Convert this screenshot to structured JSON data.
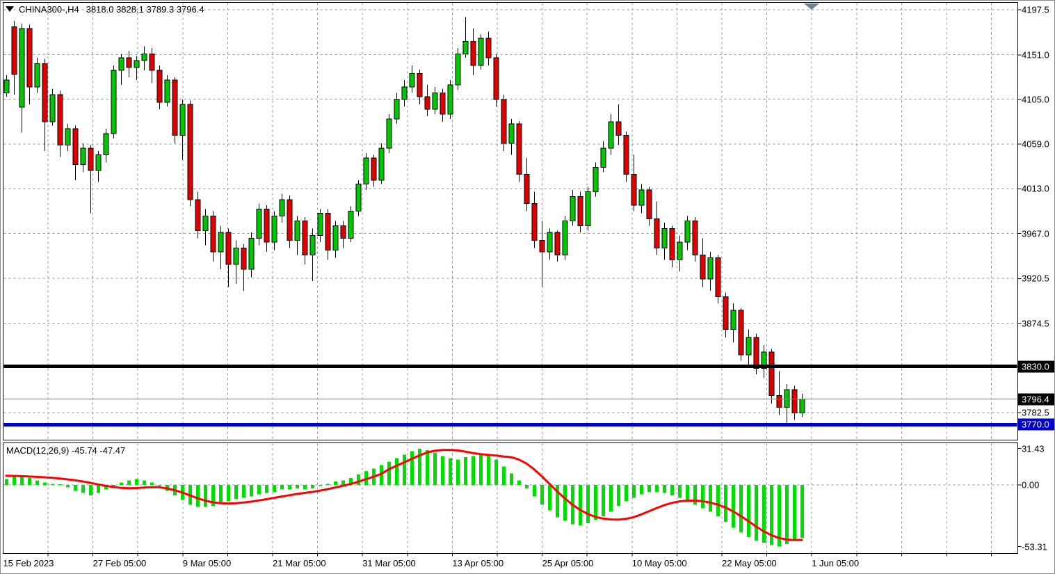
{
  "window": {
    "title_symbol": "CHINA300-,H4",
    "quote_ohlc": "3818.0 3828.1 3789.3 3796.4"
  },
  "chart_data": [
    {
      "type": "candlestick",
      "title": "CHINA300-,H4",
      "symbol": "CHINA300-",
      "timeframe": "H4",
      "current_bar_display": {
        "open": "3818.0",
        "high": "3828.1",
        "low": "3789.3",
        "close": "3796.4"
      },
      "ylim": [
        3765,
        4205
      ],
      "grid": true,
      "price_axis_ticks": [
        4197.5,
        4151.0,
        4105.0,
        4059.0,
        4013.0,
        3967.0,
        3920.5,
        3874.5,
        3782.5
      ],
      "time_axis_labels": [
        "15 Feb 2023",
        "27 Feb 05:00",
        "9 Mar 05:00",
        "21 Mar 05:00",
        "31 Mar 05:00",
        "13 Apr 05:00",
        "25 Apr 05:00",
        "10 May 05:00",
        "22 May 05:00",
        "1 Jun 05:00"
      ],
      "horizontal_lines": [
        {
          "price": 3830.0,
          "label": "3830.0",
          "color": "#000000",
          "badge_bg": "#000000",
          "thickness": 5,
          "role": "support-resistance"
        },
        {
          "price": 3796.4,
          "label": "3796.4",
          "color": "#808080",
          "badge_bg": "#000000",
          "thickness": 1,
          "role": "current-price"
        },
        {
          "price": 3770.0,
          "label": "3770.0",
          "color": "#0000C8",
          "badge_bg": "#0000C8",
          "thickness": 5,
          "role": "support-resistance"
        }
      ],
      "colors": {
        "up": "#00C800",
        "down": "#E00000",
        "wick": "#000000",
        "grid": "#7E93A8"
      },
      "candles_ohlc": [
        [
          4112,
          4130,
          4108,
          4125
        ],
        [
          4180,
          4186,
          4110,
          4131
        ],
        [
          4097,
          4183,
          4071,
          4178
        ],
        [
          4178,
          4182,
          4100,
          4118
        ],
        [
          4118,
          4148,
          4112,
          4142
        ],
        [
          4142,
          4147,
          4052,
          4082
        ],
        [
          4082,
          4116,
          4078,
          4110
        ],
        [
          4110,
          4114,
          4046,
          4058
        ],
        [
          4058,
          4080,
          4052,
          4075
        ],
        [
          4075,
          4078,
          4022,
          4038
        ],
        [
          4038,
          4060,
          4030,
          4055
        ],
        [
          4055,
          4058,
          3988,
          4032
        ],
        [
          4032,
          4052,
          4020,
          4048
        ],
        [
          4048,
          4075,
          4040,
          4070
        ],
        [
          4070,
          4140,
          4065,
          4135
        ],
        [
          4135,
          4152,
          4120,
          4148
        ],
        [
          4148,
          4155,
          4128,
          4138
        ],
        [
          4138,
          4150,
          4125,
          4145
        ],
        [
          4145,
          4160,
          4135,
          4152
        ],
        [
          4152,
          4158,
          4122,
          4135
        ],
        [
          4135,
          4140,
          4095,
          4102
        ],
        [
          4102,
          4130,
          4098,
          4125
        ],
        [
          4125,
          4128,
          4060,
          4068
        ],
        [
          4068,
          4105,
          4043,
          4100
        ],
        [
          4100,
          4104,
          3995,
          4002
        ],
        [
          4002,
          4010,
          3962,
          3970
        ],
        [
          3970,
          3992,
          3955,
          3985
        ],
        [
          3985,
          3990,
          3938,
          3948
        ],
        [
          3948,
          3975,
          3930,
          3968
        ],
        [
          3968,
          3972,
          3912,
          3935
        ],
        [
          3935,
          3960,
          3915,
          3952
        ],
        [
          3952,
          3956,
          3908,
          3930
        ],
        [
          3930,
          3968,
          3922,
          3962
        ],
        [
          3962,
          3998,
          3955,
          3992
        ],
        [
          3992,
          3996,
          3948,
          3958
        ],
        [
          3958,
          3990,
          3950,
          3985
        ],
        [
          3985,
          4008,
          3978,
          4002
        ],
        [
          4002,
          4006,
          3952,
          3960
        ],
        [
          3960,
          3985,
          3945,
          3980
        ],
        [
          3980,
          3984,
          3935,
          3945
        ],
        [
          3945,
          3972,
          3918,
          3965
        ],
        [
          3965,
          3992,
          3958,
          3988
        ],
        [
          3988,
          3992,
          3940,
          3950
        ],
        [
          3950,
          3980,
          3942,
          3975
        ],
        [
          3975,
          3980,
          3952,
          3962
        ],
        [
          3962,
          3995,
          3958,
          3990
        ],
        [
          3990,
          4022,
          3985,
          4018
        ],
        [
          4018,
          4050,
          4012,
          4045
        ],
        [
          4045,
          4048,
          4015,
          4022
        ],
        [
          4022,
          4060,
          4018,
          4055
        ],
        [
          4055,
          4090,
          4050,
          4085
        ],
        [
          4085,
          4112,
          4080,
          4105
        ],
        [
          4105,
          4125,
          4098,
          4118
        ],
        [
          4118,
          4140,
          4112,
          4132
        ],
        [
          4132,
          4136,
          4100,
          4108
        ],
        [
          4108,
          4120,
          4088,
          4095
        ],
        [
          4095,
          4118,
          4090,
          4112
        ],
        [
          4112,
          4116,
          4082,
          4090
        ],
        [
          4090,
          4125,
          4085,
          4120
        ],
        [
          4120,
          4158,
          4115,
          4152
        ],
        [
          4152,
          4190,
          4148,
          4165
        ],
        [
          4165,
          4178,
          4130,
          4140
        ],
        [
          4140,
          4172,
          4136,
          4168
        ],
        [
          4168,
          4175,
          4140,
          4148
        ],
        [
          4148,
          4152,
          4098,
          4105
        ],
        [
          4105,
          4110,
          4052,
          4060
        ],
        [
          4060,
          4085,
          4048,
          4080
        ],
        [
          4080,
          4083,
          4020,
          4028
        ],
        [
          4028,
          4045,
          3990,
          3998
        ],
        [
          3998,
          4010,
          3952,
          3960
        ],
        [
          3960,
          3980,
          3912,
          3948
        ],
        [
          3948,
          3972,
          3940,
          3968
        ],
        [
          3968,
          3970,
          3938,
          3945
        ],
        [
          3945,
          3985,
          3940,
          3980
        ],
        [
          3980,
          4012,
          3975,
          4005
        ],
        [
          4005,
          4010,
          3968,
          3975
        ],
        [
          3975,
          4015,
          3970,
          4010
        ],
        [
          4010,
          4040,
          4005,
          4035
        ],
        [
          4035,
          4062,
          4030,
          4055
        ],
        [
          4055,
          4090,
          4048,
          4082
        ],
        [
          4082,
          4100,
          4058,
          4068
        ],
        [
          4068,
          4072,
          4020,
          4028
        ],
        [
          4028,
          4048,
          3990,
          3996
        ],
        [
          3996,
          4018,
          3988,
          4012
        ],
        [
          4012,
          4015,
          3975,
          3982
        ],
        [
          3982,
          4000,
          3945,
          3952
        ],
        [
          3952,
          3978,
          3940,
          3972
        ],
        [
          3972,
          3975,
          3932,
          3940
        ],
        [
          3940,
          3965,
          3928,
          3958
        ],
        [
          3958,
          3985,
          3950,
          3980
        ],
        [
          3980,
          3984,
          3938,
          3945
        ],
        [
          3945,
          3962,
          3912,
          3920
        ],
        [
          3920,
          3948,
          3908,
          3942
        ],
        [
          3942,
          3945,
          3895,
          3902
        ],
        [
          3902,
          3906,
          3860,
          3868
        ],
        [
          3868,
          3895,
          3855,
          3888
        ],
        [
          3888,
          3890,
          3836,
          3842
        ],
        [
          3842,
          3868,
          3832,
          3860
        ],
        [
          3860,
          3864,
          3822,
          3828
        ],
        [
          3828,
          3852,
          3818,
          3845
        ],
        [
          3845,
          3848,
          3792,
          3800
        ],
        [
          3800,
          3825,
          3780,
          3788
        ],
        [
          3788,
          3812,
          3772,
          3806
        ],
        [
          3806,
          3810,
          3775,
          3782
        ],
        [
          3782,
          3802,
          3778,
          3796.4
        ]
      ]
    },
    {
      "type": "bar",
      "name": "MACD(12,26,9)",
      "label": "MACD(12,26,9) -45.74 -47.47",
      "current_main": -45.74,
      "current_signal": -47.47,
      "ylim": [
        -53.31,
        31.43
      ],
      "axis_tick_labels": [
        "31.43",
        "0.00",
        "-53.31"
      ],
      "colors": {
        "histogram": "#00DD00",
        "signal": "#FF0000"
      },
      "histogram": [
        5,
        7,
        8,
        6,
        4,
        2,
        1,
        0.5,
        -2,
        -5,
        -7,
        -9,
        -7,
        -4,
        -1,
        2,
        4,
        5,
        4,
        2,
        -1,
        -5,
        -9,
        -13,
        -17,
        -19,
        -19,
        -18,
        -16,
        -14,
        -12,
        -11,
        -10,
        -8,
        -7,
        -6,
        -4,
        -4,
        -3,
        -4,
        -3,
        -1,
        1,
        3,
        4,
        6,
        9,
        12,
        14,
        17,
        20,
        23,
        26,
        29,
        31.4,
        30,
        28,
        25,
        23,
        22,
        24,
        25,
        26,
        25,
        22,
        16,
        10,
        4,
        -3,
        -10,
        -17,
        -22,
        -28,
        -31,
        -34,
        -35,
        -33,
        -30,
        -27,
        -23,
        -18,
        -14,
        -11,
        -8,
        -6,
        -6,
        -7,
        -9,
        -11,
        -14,
        -17,
        -20,
        -23,
        -27,
        -32,
        -37,
        -41,
        -45,
        -48,
        -50,
        -52,
        -53.3,
        -51,
        -48,
        -45.74
      ],
      "signal": [
        8,
        7.8,
        7.6,
        7.3,
        7,
        6.6,
        6.1,
        5.5,
        4.8,
        4,
        3,
        1.8,
        0.5,
        -0.8,
        -1.8,
        -2.5,
        -2.8,
        -2.7,
        -2.3,
        -1.9,
        -2,
        -3,
        -4.5,
        -6.5,
        -9,
        -11.5,
        -13.5,
        -15,
        -15.8,
        -16,
        -15.8,
        -15.2,
        -14.4,
        -13.4,
        -12.3,
        -11.2,
        -10,
        -8.9,
        -7.8,
        -6.9,
        -6,
        -4.9,
        -3.6,
        -2.2,
        -0.8,
        0.8,
        2.7,
        4.9,
        7.1,
        9.5,
        13.5,
        16.5,
        19.5,
        22.5,
        25.5,
        28,
        29.5,
        30.2,
        30.3,
        29.8,
        28.8,
        27.6,
        26.6,
        26,
        25.4,
        24.6,
        24,
        22,
        18.5,
        13.5,
        7.5,
        1,
        -5.5,
        -11.5,
        -17,
        -21.5,
        -25,
        -27.5,
        -29,
        -29.8,
        -30,
        -29.3,
        -27.8,
        -25.5,
        -22.8,
        -20,
        -17.5,
        -15.5,
        -14.2,
        -13.6,
        -13.5,
        -14,
        -15.2,
        -17,
        -19.5,
        -22.8,
        -26.8,
        -31.2,
        -35.8,
        -40,
        -43.4,
        -45.8,
        -47.2,
        -47.6,
        -47.47
      ]
    }
  ]
}
